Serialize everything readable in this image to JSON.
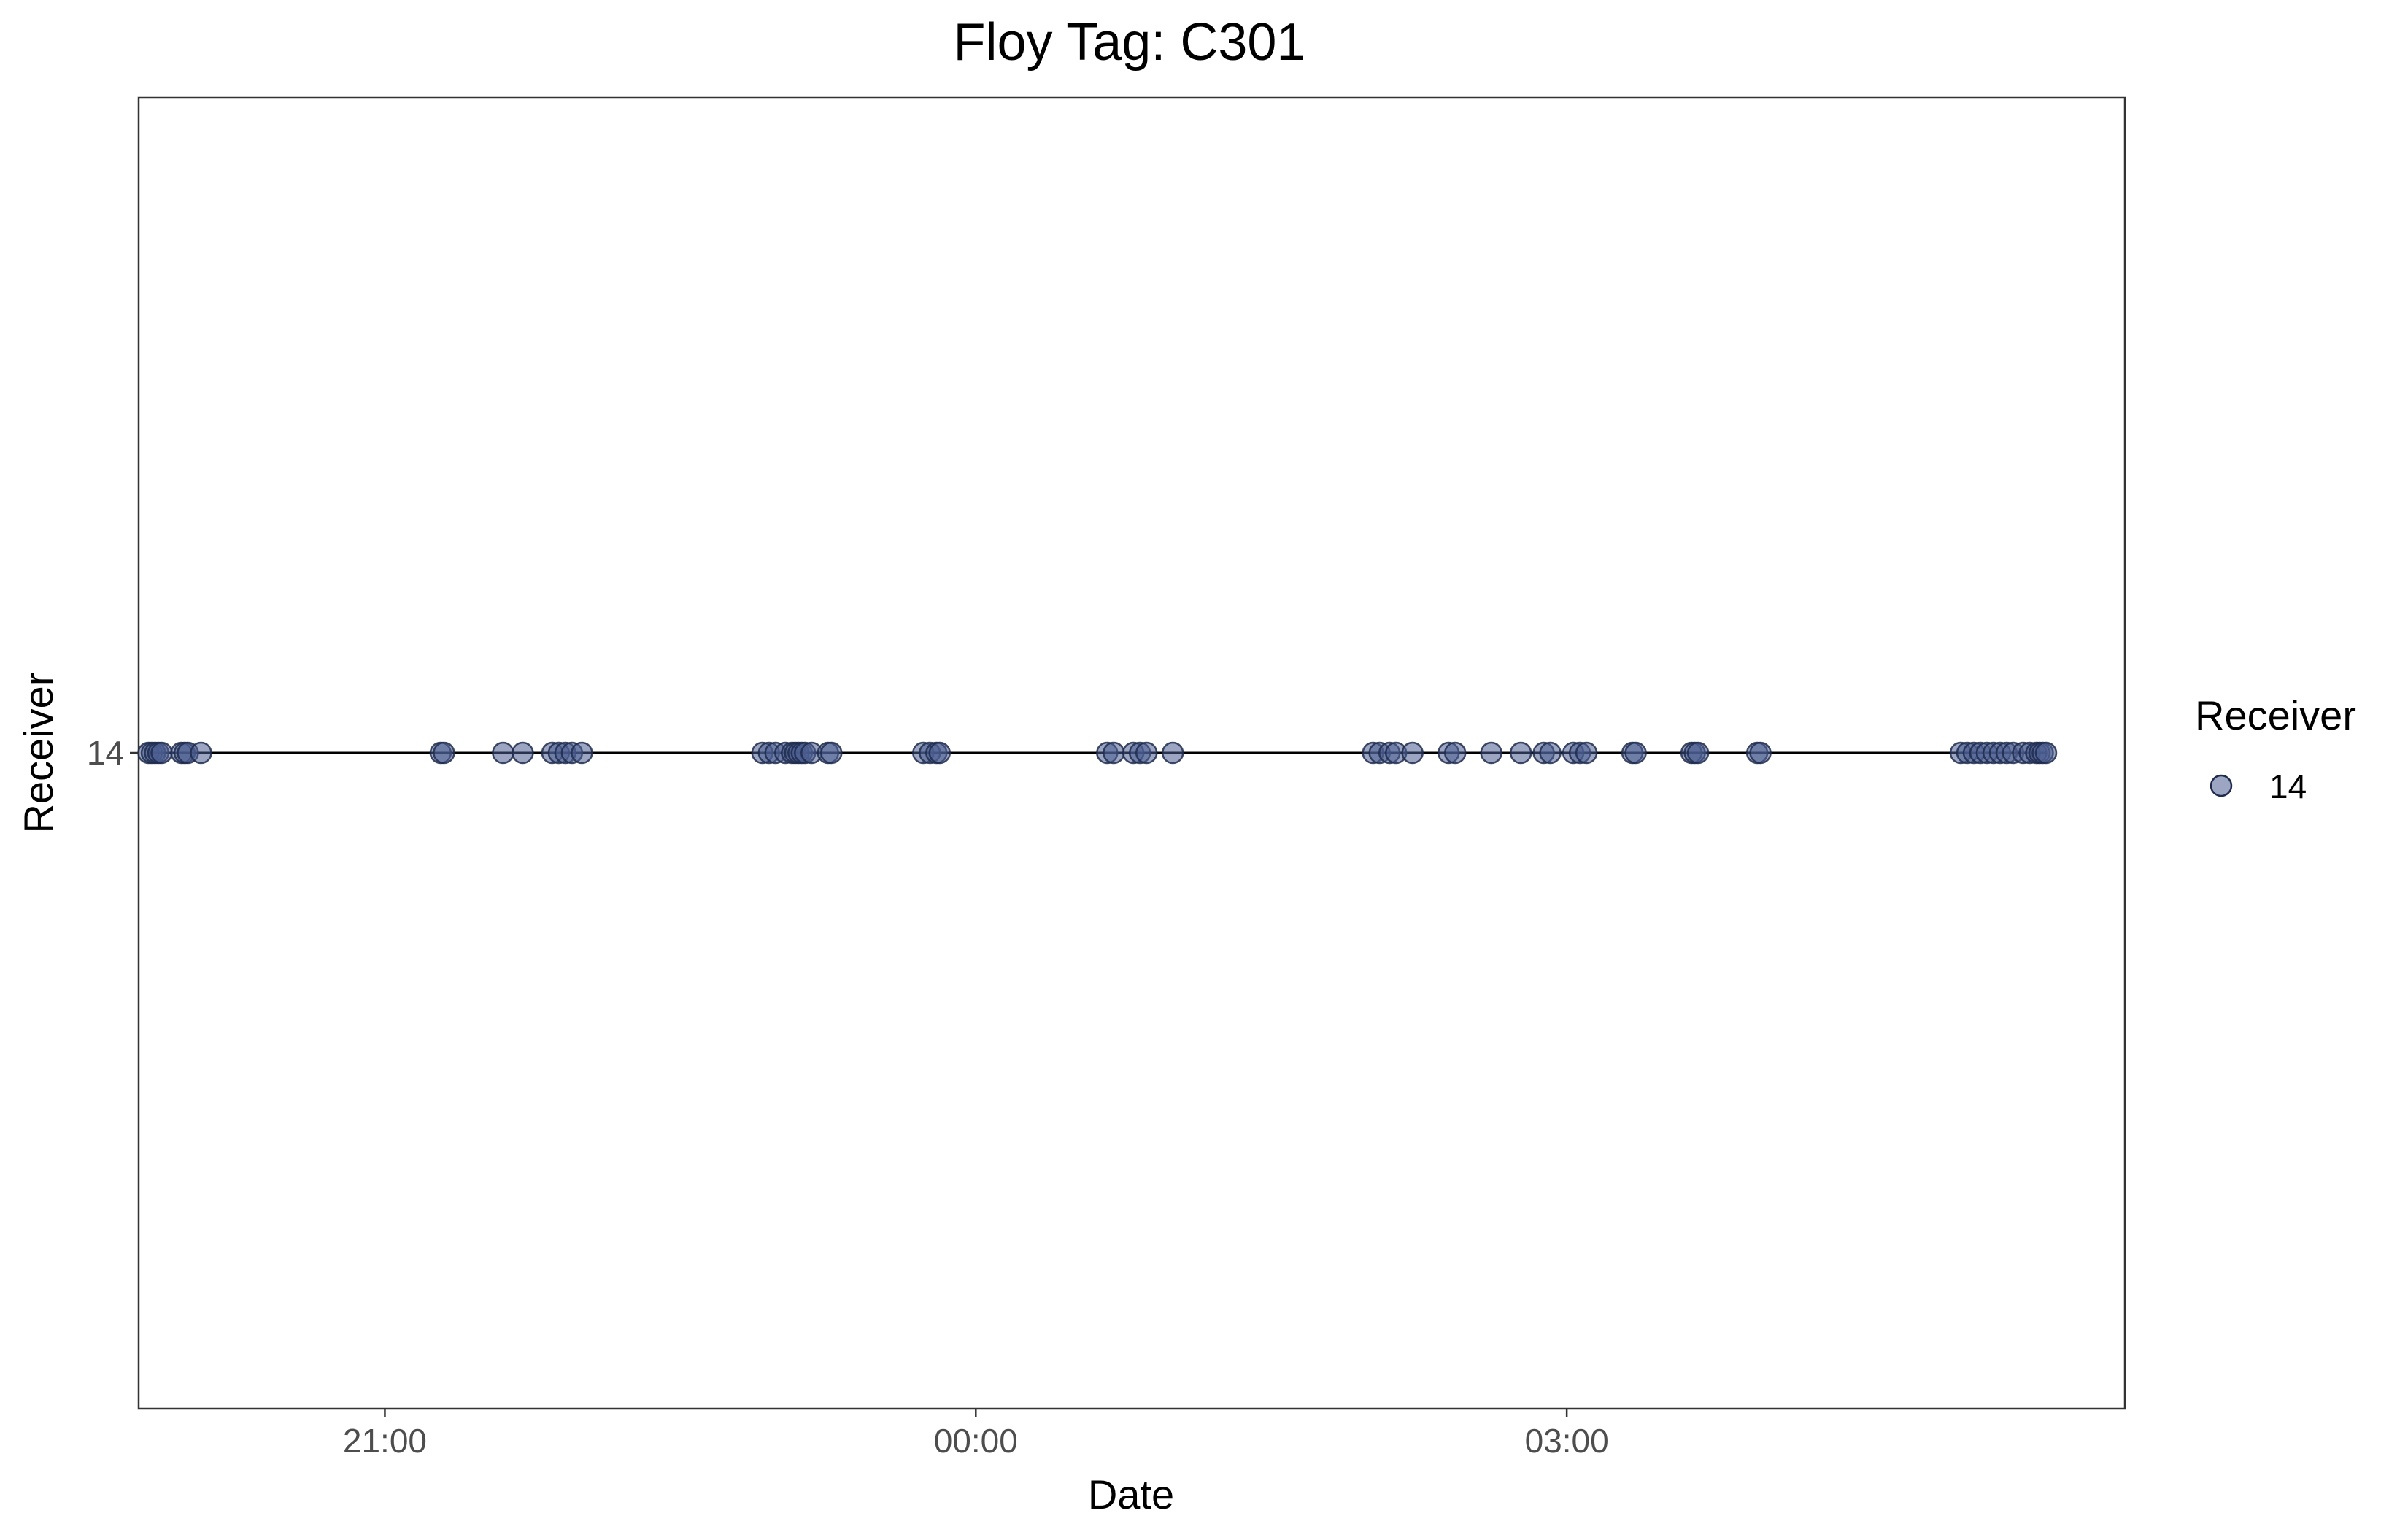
{
  "chart_data": {
    "type": "scatter",
    "title": "Floy Tag: C301",
    "xlabel": "Date",
    "ylabel": "Receiver",
    "x_ticks": [
      "21:00",
      "00:00",
      "03:00"
    ],
    "y_ticks": [
      "14"
    ],
    "xlim": [
      "19:45",
      "05:50"
    ],
    "legend": {
      "title": "Receiver",
      "placement": "right",
      "entries": [
        {
          "label": "14",
          "color": "#4a5d8f"
        }
      ]
    },
    "grid": false,
    "point_color": "#4a5d8f",
    "line_color": "#000000",
    "series": [
      {
        "name": "14",
        "x": [
          "19:48",
          "19:49",
          "19:50",
          "19:51",
          "19:52",
          "19:58",
          "19:59",
          "20:00",
          "20:04",
          "21:17",
          "21:18",
          "21:36",
          "21:42",
          "21:51",
          "21:53",
          "21:55",
          "21:57",
          "22:00",
          "22:55",
          "22:57",
          "22:59",
          "23:02",
          "23:04",
          "23:05",
          "23:06",
          "23:07",
          "23:08",
          "23:10",
          "23:15",
          "23:16",
          "23:44",
          "23:46",
          "23:48",
          "23:49",
          "00:40",
          "00:42",
          "00:48",
          "00:50",
          "00:52",
          "01:00",
          "02:01",
          "02:03",
          "02:06",
          "02:08",
          "02:13",
          "02:24",
          "02:26",
          "02:37",
          "02:46",
          "02:53",
          "02:55",
          "03:02",
          "03:04",
          "03:06",
          "03:20",
          "03:21",
          "03:38",
          "03:39",
          "03:40",
          "03:58",
          "03:59",
          "05:00",
          "05:02",
          "05:04",
          "05:06",
          "05:08",
          "05:10",
          "05:12",
          "05:14",
          "05:16",
          "05:19",
          "05:21",
          "05:23",
          "05:24",
          "05:25",
          "05:26"
        ],
        "y": [
          14,
          14,
          14,
          14,
          14,
          14,
          14,
          14,
          14,
          14,
          14,
          14,
          14,
          14,
          14,
          14,
          14,
          14,
          14,
          14,
          14,
          14,
          14,
          14,
          14,
          14,
          14,
          14,
          14,
          14,
          14,
          14,
          14,
          14,
          14,
          14,
          14,
          14,
          14,
          14,
          14,
          14,
          14,
          14,
          14,
          14,
          14,
          14,
          14,
          14,
          14,
          14,
          14,
          14,
          14,
          14,
          14,
          14,
          14,
          14,
          14,
          14,
          14,
          14,
          14,
          14,
          14,
          14,
          14,
          14,
          14,
          14,
          14,
          14,
          14,
          14
        ]
      }
    ]
  }
}
